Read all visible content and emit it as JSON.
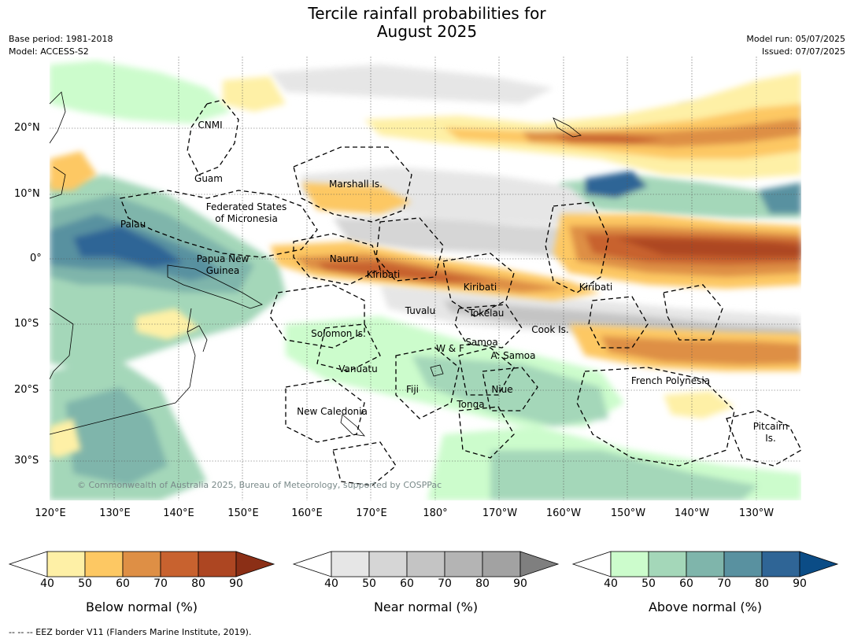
{
  "title_line1": "Tercile rainfall probabilities for",
  "title_line2": "August 2025",
  "meta": {
    "base_period": "Base period: 1981-2018",
    "model": "Model: ACCESS-S2",
    "model_run": "Model run: 05/07/2025",
    "issued": "Issued: 07/07/2025"
  },
  "map": {
    "lat_labels": [
      "20°N",
      "10°N",
      "0°",
      "10°S",
      "20°S",
      "30°S"
    ],
    "lon_labels": [
      "120°E",
      "130°E",
      "140°E",
      "150°E",
      "160°E",
      "170°E",
      "180°",
      "170°W",
      "160°W",
      "150°W",
      "140°W",
      "130°W"
    ],
    "regions": [
      "CNMI",
      "Guam",
      "Marshall Is.",
      "Federated States",
      "of Micronesia",
      "Palau",
      "Papua New",
      "Guinea",
      "Nauru",
      "Kiribati",
      "Kiribati",
      "Kiribati",
      "Tuvalu",
      "Tokelau",
      "Cook Is.",
      "Solomon Is.",
      "W & F",
      "Samoa",
      "A. Samoa",
      "Vanuatu",
      "Fiji",
      "Niue",
      "French Polynesia",
      "Tonga",
      "New Caledonia",
      "Pitcairn",
      "Is."
    ],
    "copyright": "© Commonwealth of Australia 2025, Bureau of Meteorology, supported by COSPPac"
  },
  "colorbars": [
    {
      "title": "Below normal (%)",
      "ticks": [
        "40",
        "50",
        "60",
        "70",
        "80",
        "90"
      ],
      "colors": [
        "#fef0a6",
        "#fdc863",
        "#de8f45",
        "#c8622f",
        "#ad4622",
        "#8b2f16"
      ]
    },
    {
      "title": "Near normal (%)",
      "ticks": [
        "40",
        "50",
        "60",
        "70",
        "80",
        "90"
      ],
      "colors": [
        "#e6e6e6",
        "#d6d6d6",
        "#c4c4c4",
        "#b4b4b4",
        "#a2a2a2",
        "#7f7f7f"
      ]
    },
    {
      "title": "Above normal (%)",
      "ticks": [
        "40",
        "50",
        "60",
        "70",
        "80",
        "90"
      ],
      "colors": [
        "#ccfccc",
        "#a4d7b9",
        "#7fb5ab",
        "#5991a0",
        "#2f6596",
        "#0b4c86"
      ]
    }
  ],
  "footer": "--  --  -- EEZ border V11 (Flanders Marine Institute, 2019)."
}
